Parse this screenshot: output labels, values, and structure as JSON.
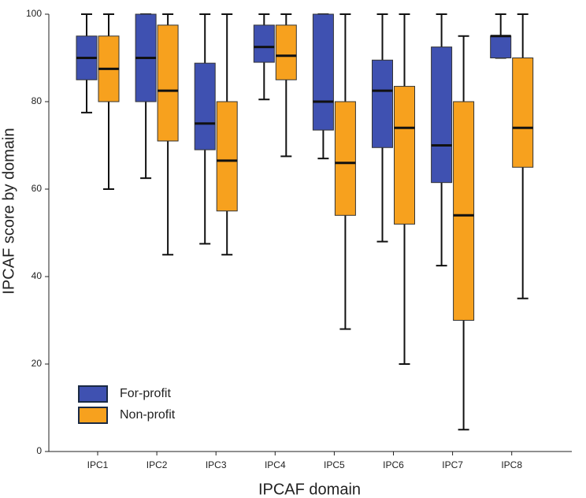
{
  "chart_data": {
    "type": "box",
    "x_label": "IPCAF domain",
    "y_label": "IPCAF score by domain",
    "categories": [
      "IPC1",
      "IPC2",
      "IPC3",
      "IPC4",
      "IPC5",
      "IPC6",
      "IPC7",
      "IPC8"
    ],
    "ylim": [
      0,
      100
    ],
    "yticks": [
      0,
      20,
      40,
      60,
      80,
      100
    ],
    "legend_position": "lower left",
    "series": [
      {
        "name": "For-profit",
        "color": "#3f51b1",
        "min": [
          77.5,
          62.5,
          47.5,
          80.5,
          67,
          48,
          42.5,
          90
        ],
        "q1": [
          85,
          80,
          69,
          89,
          73.5,
          69.5,
          61.5,
          90
        ],
        "median": [
          90,
          90,
          75,
          92.5,
          80,
          82.5,
          70,
          95
        ],
        "q3": [
          95,
          100,
          88.8,
          97.5,
          100,
          89.5,
          92.5,
          95
        ],
        "max": [
          100,
          100,
          100,
          100,
          100,
          100,
          100,
          100
        ]
      },
      {
        "name": "Non-profit",
        "color": "#f7a11e",
        "min": [
          60,
          45,
          45,
          67.5,
          28,
          20,
          5,
          35
        ],
        "q1": [
          80,
          71,
          55,
          85,
          54,
          52,
          30,
          65
        ],
        "median": [
          87.5,
          82.5,
          66.5,
          90.5,
          66,
          74,
          54,
          74
        ],
        "q3": [
          95,
          97.5,
          80,
          97.5,
          80,
          83.5,
          80,
          90
        ],
        "max": [
          100,
          100,
          100,
          100,
          100,
          100,
          95,
          100
        ]
      }
    ]
  }
}
